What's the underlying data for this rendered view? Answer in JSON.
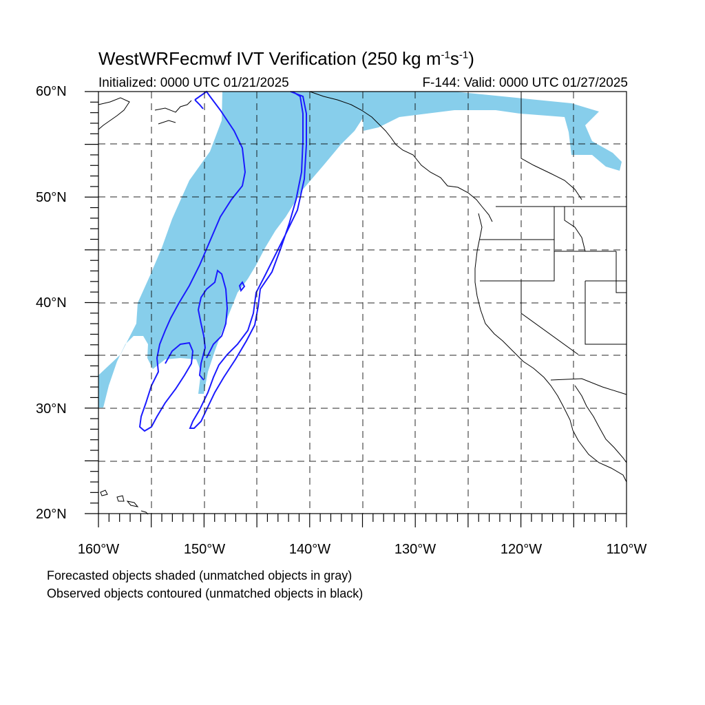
{
  "title": {
    "text": "WestWRFecmwf IVT Verification (250 kg m",
    "sup1": "-1",
    "mid": "s",
    "sup2": "-1",
    "end": ")"
  },
  "initialized": "Initialized: 0000 UTC 01/21/2025",
  "valid": "F-144: Valid: 0000 UTC 01/27/2025",
  "lat_labels": [
    "60°N",
    "50°N",
    "40°N",
    "30°N",
    "20°N"
  ],
  "lon_labels": [
    "160°W",
    "150°W",
    "140°W",
    "130°W",
    "120°W",
    "110°W"
  ],
  "footer": {
    "line1": "Forecasted objects shaded (unmatched objects in gray)",
    "line2": "Observed objects contoured (unmatched objects in black)"
  },
  "colors": {
    "forecast_fill": "#87ceeb",
    "observed_contour": "#1a1aff",
    "coastline": "#000000",
    "grid": "#000000"
  },
  "map_extent": {
    "lon": [
      -160,
      -110
    ],
    "lat": [
      20,
      60
    ]
  }
}
